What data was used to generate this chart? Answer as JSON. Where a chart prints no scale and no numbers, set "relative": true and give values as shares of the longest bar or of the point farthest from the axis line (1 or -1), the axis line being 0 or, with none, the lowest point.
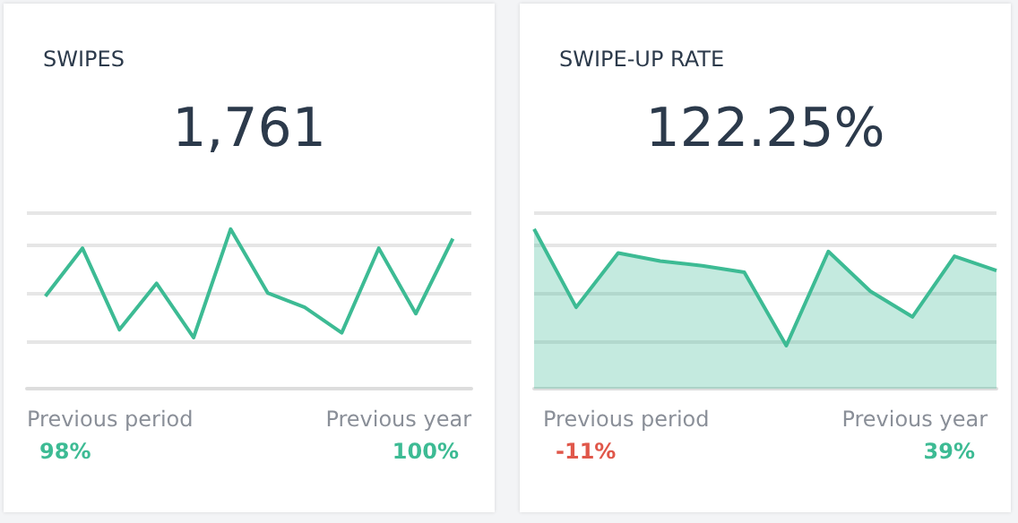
{
  "chart_data": [
    {
      "type": "line",
      "title": "SWIPES",
      "subtitle": "1,761",
      "relative": true,
      "grid": "y",
      "marker": "none",
      "categories": [
        null,
        null,
        null,
        null,
        null,
        null,
        null,
        null,
        null,
        null,
        null,
        null
      ],
      "series": [
        {
          "color": "#3dbb94",
          "values": [
            0.58,
            0.88,
            0.37,
            0.66,
            0.32,
            1,
            0.6,
            0.51,
            0.35,
            0.88,
            0.47,
            0.94
          ]
        }
      ],
      "annotations": [
        "Previous period",
        "98%",
        "Previous year",
        "100%"
      ]
    },
    {
      "type": "area",
      "title": "SWIPE-UP RATE",
      "subtitle": "122.25%",
      "relative": true,
      "grid": "y",
      "marker": "none",
      "categories": [
        null,
        null,
        null,
        null,
        null,
        null,
        null,
        null,
        null,
        null,
        null,
        null
      ],
      "series": [
        {
          "color": "#3dbb94",
          "values": [
            1,
            0.51,
            0.85,
            0.8,
            0.77,
            0.73,
            0.27,
            0.86,
            0.61,
            0.45,
            0.83,
            0.74
          ]
        }
      ],
      "annotations": [
        "Previous period",
        "-11%",
        "Previous year",
        "39%"
      ]
    }
  ]
}
